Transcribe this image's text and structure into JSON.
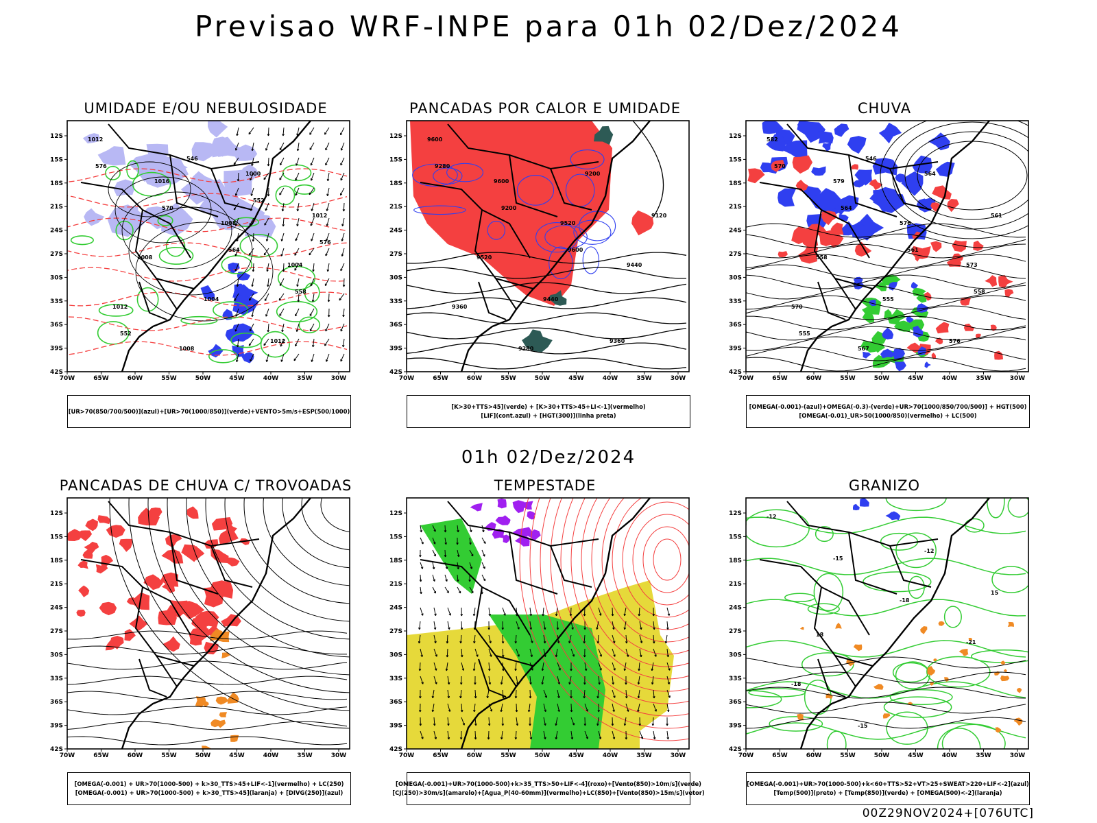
{
  "title": "Previsao WRF-INPE  para 01h 02/Dez/2024",
  "middle_title": "01h 02/Dez/2024",
  "footer": "00Z29NOV2024+[076UTC]",
  "lat_labels": [
    "12S",
    "15S",
    "18S",
    "21S",
    "24S",
    "27S",
    "30S",
    "33S",
    "36S",
    "39S",
    "42S"
  ],
  "lon_labels": [
    "70W",
    "65W",
    "60W",
    "55W",
    "50W",
    "45W",
    "40W",
    "35W",
    "30W"
  ],
  "colors": {
    "red": "#f44040",
    "blue": "#2f3ff0",
    "lavender": "#b8b8f4",
    "green": "#33cc33",
    "dark_teal": "#2d5a55",
    "yellow": "#e6d93a",
    "purple": "#a020f0",
    "orange": "#f08a24"
  },
  "panels": [
    {
      "id": "umidade",
      "title": "UMIDADE E/OU NEBULOSIDADE",
      "legend": [
        "[UR>70(850/700/500)](azul)+[UR>70(1000/850)](verde)+VENTO>5m/s+ESP(500/1000)"
      ],
      "contour_labels": [
        "1012",
        "1016",
        "1008",
        "1004",
        "1012",
        "1008",
        "1000",
        "1012",
        "1008",
        "1004",
        "1012",
        "576",
        "570",
        "564",
        "558",
        "552",
        "546",
        "552",
        "576"
      ]
    },
    {
      "id": "pancadas-calor",
      "title": "PANCADAS POR CALOR E UMIDADE",
      "legend": [
        "[K>30+TTS>45](verde) + [K>30+TTS>45+LI<-1](vermelho)",
        "[LIF](cont.azul) + [HGT(300)](linha preta)"
      ],
      "contour_labels": [
        "9600",
        "9600",
        "9520",
        "9440",
        "9360",
        "9280",
        "9200",
        "9120",
        "9520",
        "9440",
        "9360",
        "9280",
        "9200",
        "9600"
      ]
    },
    {
      "id": "chuva",
      "title": "CHUVA",
      "legend": [
        "[OMEGA(-0.001)-(azul)+OMEGA(-0.3)-(verde)+UR>70(1000/850/700/500)] + HGT(500)",
        "[OMEGA(-0.01)_UR>50(1000/850)(vermelho) + LC(500)"
      ],
      "contour_labels": [
        "582",
        "579",
        "576",
        "573",
        "570",
        "567",
        "564",
        "561",
        "558",
        "555",
        "576",
        "570",
        "564",
        "561",
        "558",
        "555",
        "546"
      ]
    },
    {
      "id": "trovoadas",
      "title": "PANCADAS DE CHUVA C/ TROVOADAS",
      "legend": [
        "[OMEGA(-0.001) + UR>70(1000-500) + k>30_TTS>45+LIF<-1](vermelho) + LC(250)",
        "[OMEGA(-0.001) + UR>70(1000-500) + k>30_TTS>45](laranja) + [DIVG(250)](azul)"
      ],
      "contour_labels": []
    },
    {
      "id": "tempestade",
      "title": "TEMPESTADE",
      "legend": [
        "[OMEGA(-0.001)+UR>70(1000-500)+k>35_TTS>50+LIF<-4](roxo)+[Vento(850)>10m/s](verde)",
        "[CJ(250)>30m/s](amarelo)+[Agua_P(40-60mm)](vermelho)+LC(850)+[Vento(850)>15m/s](vetor)"
      ],
      "contour_labels": []
    },
    {
      "id": "granizo",
      "title": "GRANIZO",
      "legend": [
        "[OMEGA(-0.001)+UR>70(1000-500)+k<60+TTS>52+VT>25+SWEAT>220+LIF<-2](azul)",
        "[Temp(500)](preto) + [Temp(850)](verde) + [OMEGA(500)<-2](laranja)"
      ],
      "contour_labels": [
        "-12",
        "-15",
        "-18",
        "-21",
        "-18",
        "-15",
        "-12",
        "15",
        "18"
      ]
    }
  ]
}
